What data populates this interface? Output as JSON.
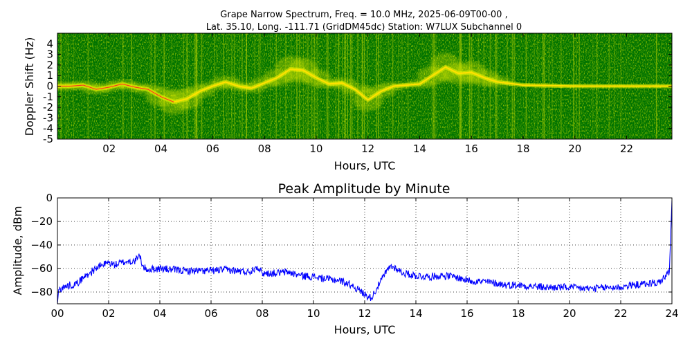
{
  "chart_data": [
    {
      "type": "heatmap",
      "title_line1": "Grape Narrow Spectrum, Freq. = 10.0 MHz, 2025-06-09T00-00 ,",
      "title_line2": "Lat.  35.10, Long. -111.71 (GridDM45dc) Station: W7LUX Subchannel 0",
      "xlabel": "Hours, UTC",
      "ylabel": "Doppler Shift (Hz)",
      "xlim": [
        0,
        23.75
      ],
      "ylim": [
        -5,
        5
      ],
      "x_ticks": [
        2,
        4,
        6,
        8,
        10,
        12,
        14,
        16,
        18,
        20,
        22
      ],
      "x_tick_labels": [
        "02",
        "04",
        "06",
        "08",
        "10",
        "12",
        "14",
        "16",
        "18",
        "20",
        "22"
      ],
      "y_ticks": [
        -5,
        -4,
        -3,
        -2,
        -1,
        0,
        1,
        2,
        3,
        4
      ],
      "y_tick_labels": [
        "-5",
        "-4",
        "-3",
        "-2",
        "-1",
        "0",
        "1",
        "2",
        "3",
        "4"
      ],
      "colormap": [
        "#006400",
        "#3f8a00",
        "#a8c800",
        "#f5f500",
        "#ffa500",
        "#e52020"
      ],
      "background_color": "#007300",
      "doppler_trace": [
        [
          0.0,
          0.0
        ],
        [
          0.5,
          0.0
        ],
        [
          1.0,
          0.1
        ],
        [
          1.5,
          -0.3
        ],
        [
          2.0,
          -0.1
        ],
        [
          2.5,
          0.2
        ],
        [
          3.0,
          -0.1
        ],
        [
          3.5,
          -0.3
        ],
        [
          4.0,
          -1.0
        ],
        [
          4.5,
          -1.5
        ],
        [
          5.0,
          -1.2
        ],
        [
          5.5,
          -0.5
        ],
        [
          6.0,
          0.0
        ],
        [
          6.5,
          0.4
        ],
        [
          7.0,
          0.0
        ],
        [
          7.5,
          -0.2
        ],
        [
          8.0,
          0.3
        ],
        [
          8.5,
          0.8
        ],
        [
          9.0,
          1.6
        ],
        [
          9.5,
          1.5
        ],
        [
          10.0,
          0.8
        ],
        [
          10.5,
          0.2
        ],
        [
          11.0,
          0.3
        ],
        [
          11.5,
          -0.3
        ],
        [
          12.0,
          -1.3
        ],
        [
          12.5,
          -0.5
        ],
        [
          13.0,
          0.0
        ],
        [
          14.0,
          0.2
        ],
        [
          14.5,
          1.0
        ],
        [
          15.0,
          1.8
        ],
        [
          15.5,
          1.2
        ],
        [
          16.0,
          1.3
        ],
        [
          16.5,
          0.8
        ],
        [
          17.0,
          0.4
        ],
        [
          18.0,
          0.1
        ],
        [
          20.0,
          0.0
        ],
        [
          22.0,
          0.0
        ],
        [
          23.75,
          0.0
        ]
      ]
    },
    {
      "type": "line",
      "title": "Peak Amplitude by Minute",
      "xlabel": "Hours, UTC",
      "ylabel": "Amplitude, dBm",
      "xlim": [
        0,
        24
      ],
      "ylim": [
        -90,
        0
      ],
      "grid": true,
      "x_ticks": [
        0,
        2,
        4,
        6,
        8,
        10,
        12,
        14,
        16,
        18,
        20,
        22,
        24
      ],
      "x_tick_labels": [
        "00",
        "02",
        "04",
        "06",
        "08",
        "10",
        "12",
        "14",
        "16",
        "18",
        "20",
        "22",
        "24"
      ],
      "y_ticks": [
        0,
        -20,
        -40,
        -60,
        -80
      ],
      "y_tick_labels": [
        "0",
        "−20",
        "−40",
        "−60",
        "−80"
      ],
      "line_color": "#0000ff",
      "series": [
        {
          "x": [
            0.0,
            0.05,
            0.25,
            0.5,
            0.75,
            1.0,
            1.25,
            1.5,
            1.75,
            2.0,
            2.25,
            2.5,
            2.75,
            3.0,
            3.25,
            3.3,
            3.5,
            4.0,
            4.5,
            5.0,
            5.5,
            6.0,
            6.5,
            7.0,
            7.5,
            7.8,
            8.0,
            8.5,
            9.0,
            9.5,
            10.0,
            10.5,
            11.0,
            11.5,
            11.75,
            12.0,
            12.25,
            12.5,
            12.75,
            13.0,
            13.25,
            13.5,
            14.0,
            14.5,
            15.0,
            15.5,
            16.0,
            16.5,
            17.0,
            17.5,
            18.0,
            18.5,
            19.0,
            19.5,
            20.0,
            20.5,
            21.0,
            21.5,
            22.0,
            22.5,
            23.0,
            23.5,
            23.9,
            24.0
          ],
          "y": [
            -90,
            -78,
            -76,
            -74,
            -73,
            -68,
            -64,
            -60,
            -57,
            -55,
            -57,
            -55,
            -54,
            -54,
            -49,
            -58,
            -61,
            -60,
            -61,
            -62,
            -62,
            -62,
            -61,
            -62,
            -63,
            -58,
            -64,
            -64,
            -63,
            -66,
            -67,
            -69,
            -70,
            -74,
            -78,
            -82,
            -85,
            -76,
            -66,
            -58,
            -60,
            -64,
            -66,
            -67,
            -66,
            -67,
            -70,
            -71,
            -72,
            -74,
            -74,
            -75,
            -76,
            -76,
            -76,
            -77,
            -77,
            -76,
            -76,
            -74,
            -73,
            -72,
            -63,
            -2
          ]
        }
      ]
    }
  ]
}
